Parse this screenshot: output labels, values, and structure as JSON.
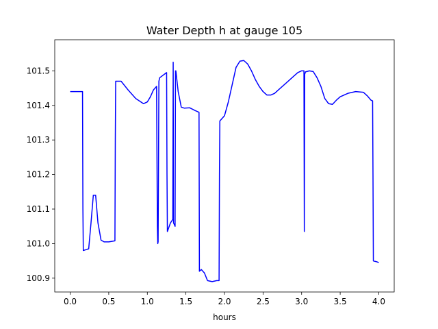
{
  "chart_data": {
    "type": "line",
    "title": "Water Depth h at gauge 105",
    "xlabel": "hours",
    "ylabel": "",
    "xlim": [
      -0.2,
      4.2
    ],
    "ylim": [
      100.86,
      101.59
    ],
    "xticks": [
      "0.0",
      "0.5",
      "1.0",
      "1.5",
      "2.0",
      "2.5",
      "3.0",
      "3.5",
      "4.0"
    ],
    "yticks": [
      "100.9",
      "101.0",
      "101.1",
      "101.2",
      "101.3",
      "101.4",
      "101.5"
    ],
    "grid": false,
    "line_color": "#0000ff",
    "series": [
      {
        "x": [
          0.0,
          0.16,
          0.165,
          0.17,
          0.24,
          0.27,
          0.3,
          0.33,
          0.36,
          0.4,
          0.44,
          0.5,
          0.58,
          0.585,
          0.59,
          0.66,
          0.75,
          0.85,
          0.95,
          1.0,
          1.04,
          1.08,
          1.12,
          1.13,
          1.135,
          1.14,
          1.15,
          1.155,
          1.16,
          1.25,
          1.255,
          1.26,
          1.3,
          1.33,
          1.335,
          1.34,
          1.36,
          1.365,
          1.37,
          1.4,
          1.44,
          1.48,
          1.55,
          1.62,
          1.67,
          1.675,
          1.7,
          1.74,
          1.78,
          1.84,
          1.9,
          1.93,
          1.935,
          1.94,
          2.0,
          2.05,
          2.1,
          2.15,
          2.2,
          2.25,
          2.3,
          2.35,
          2.4,
          2.45,
          2.5,
          2.55,
          2.6,
          2.65,
          2.7,
          2.8,
          2.9,
          2.95,
          3.0,
          3.03,
          3.035,
          3.04,
          3.05,
          3.1,
          3.15,
          3.2,
          3.25,
          3.3,
          3.35,
          3.4,
          3.45,
          3.5,
          3.6,
          3.7,
          3.8,
          3.85,
          3.9,
          3.92,
          3.925,
          3.93,
          3.98,
          4.0
        ],
        "y": [
          101.44,
          101.44,
          101.1,
          100.98,
          100.985,
          101.06,
          101.14,
          101.14,
          101.06,
          101.01,
          101.005,
          101.005,
          101.008,
          101.3,
          101.47,
          101.47,
          101.445,
          101.42,
          101.405,
          101.41,
          101.425,
          101.445,
          101.455,
          101.05,
          101.0,
          101.005,
          101.47,
          101.475,
          101.48,
          101.495,
          101.2,
          101.035,
          101.06,
          101.07,
          101.525,
          101.06,
          101.05,
          101.5,
          101.5,
          101.44,
          101.395,
          101.392,
          101.393,
          101.385,
          101.38,
          100.92,
          100.925,
          100.915,
          100.893,
          100.89,
          100.893,
          100.893,
          101.2,
          101.355,
          101.37,
          101.41,
          101.46,
          101.51,
          101.528,
          101.53,
          101.52,
          101.5,
          101.475,
          101.455,
          101.44,
          101.43,
          101.43,
          101.435,
          101.445,
          101.465,
          101.485,
          101.495,
          101.5,
          101.5,
          101.035,
          101.49,
          101.497,
          101.5,
          101.498,
          101.48,
          101.455,
          101.42,
          101.405,
          101.403,
          101.415,
          101.425,
          101.435,
          101.44,
          101.438,
          101.428,
          101.415,
          101.413,
          101.2,
          100.95,
          100.947,
          100.945
        ]
      }
    ]
  }
}
